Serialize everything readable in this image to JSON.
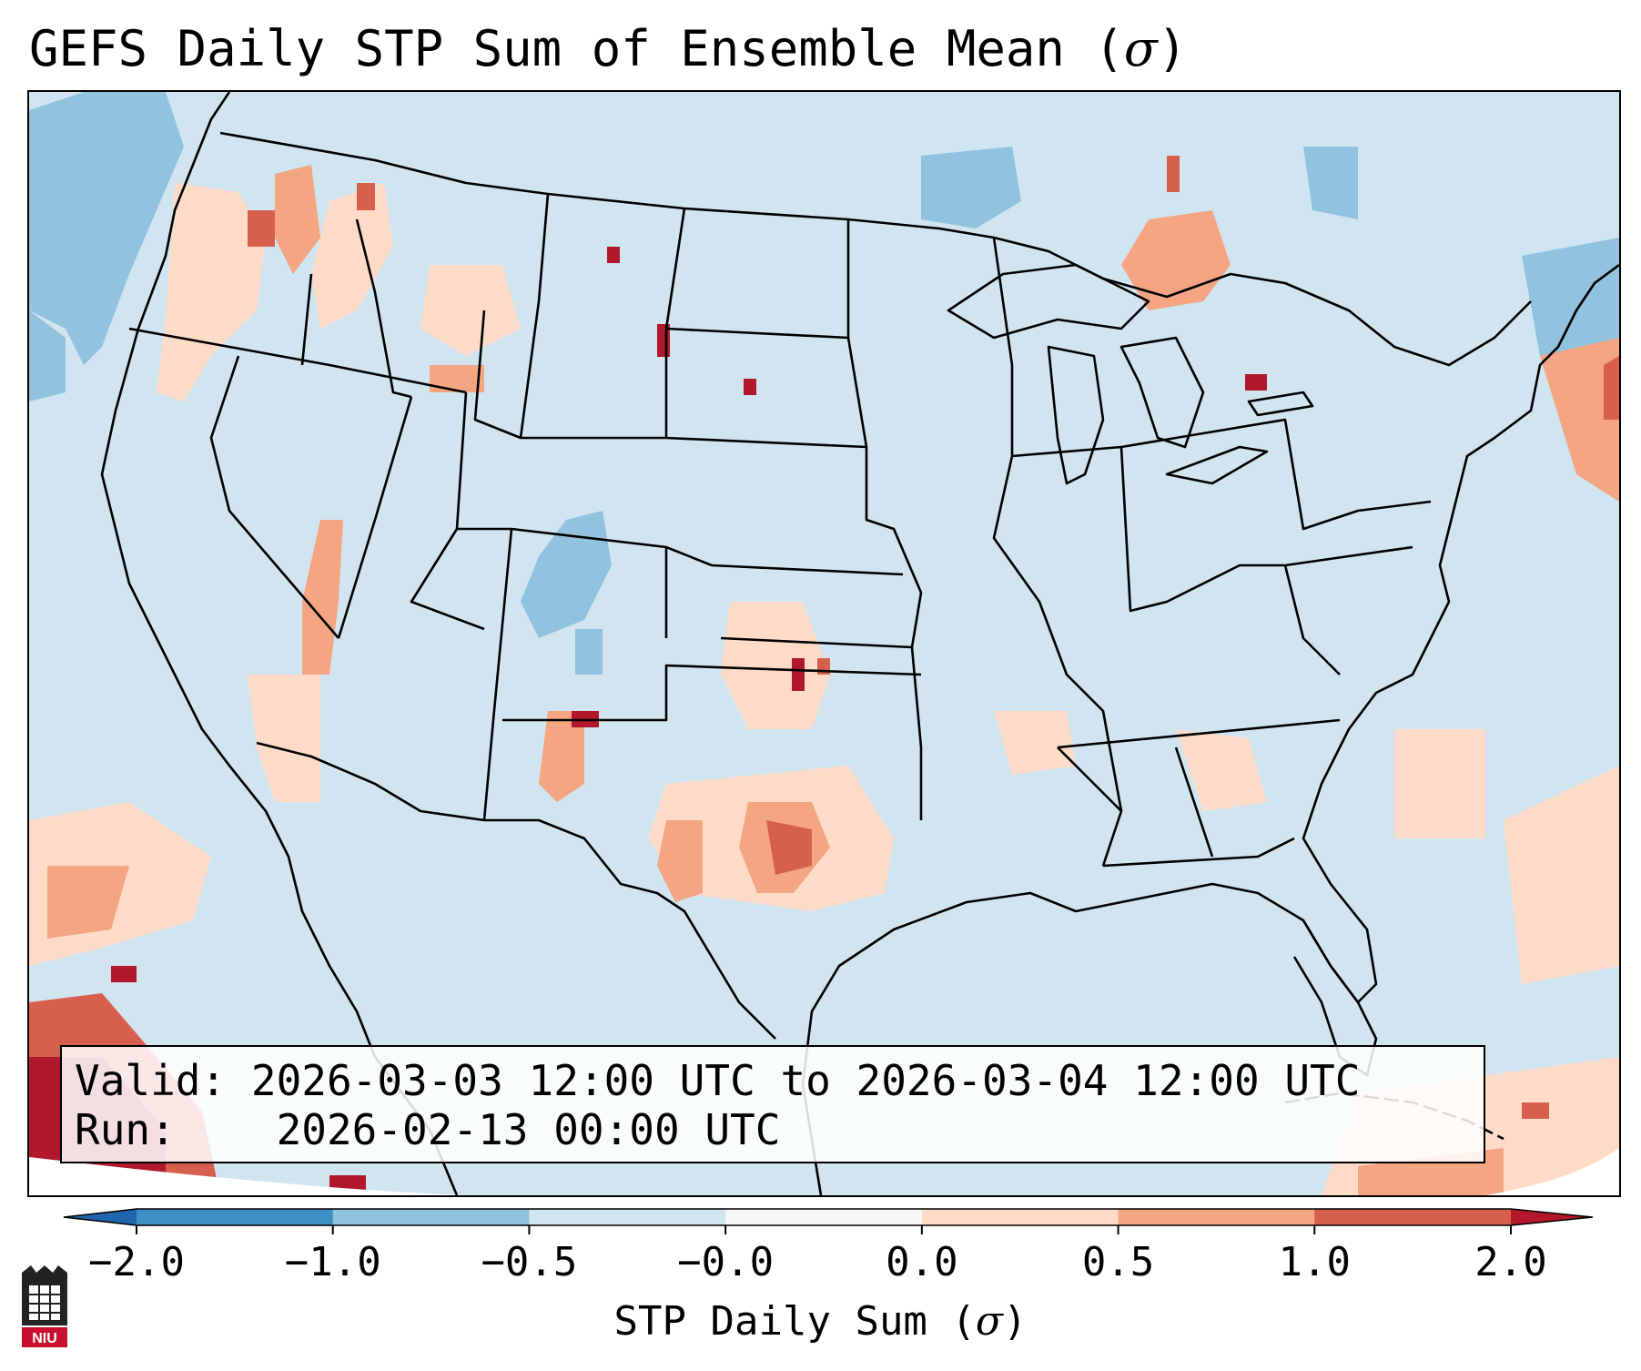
{
  "title": {
    "text": "GEFS Daily STP Sum of Ensemble Mean (",
    "symbol": "σ",
    "close": ")"
  },
  "info": {
    "valid_label": "Valid:",
    "valid_value": "2026-03-03 12:00 UTC to 2026-03-04 12:00 UTC",
    "run_label": "Run:",
    "run_value": "2026-02-13 00:00 UTC"
  },
  "colorbar": {
    "label_text": "STP Daily Sum (",
    "label_symbol": "σ",
    "label_close": ")",
    "ticks": [
      "−2.0",
      "−1.0",
      "−0.5",
      "−0.0",
      "0.0",
      "0.5",
      "1.0",
      "2.0"
    ],
    "colors": [
      "#3f8fc4",
      "#91c3de",
      "#d1e5f0",
      "#f7f7f7",
      "#fddbc7",
      "#f4a582",
      "#d6604d"
    ],
    "under_color": "#2166ac",
    "over_color": "#b2182b"
  },
  "logo": {
    "text": "NIU"
  },
  "chart_data": {
    "type": "heatmap",
    "title": "GEFS Daily STP Sum of Ensemble Mean (σ)",
    "units": "σ",
    "levels": [
      -2.0,
      -1.0,
      -0.5,
      -0.0,
      0.0,
      0.5,
      1.0,
      2.0
    ],
    "extend": "both",
    "background_level": -0.25,
    "features": [
      {
        "region": "Southern Plains (TX/OK)",
        "value_range": [
          0.5,
          2.0
        ]
      },
      {
        "region": "Desert Southwest / Lower Colorado River",
        "value_range": [
          0.5,
          2.0
        ]
      },
      {
        "region": "Eastern New Mexico",
        "value_range": [
          0.5,
          2.0
        ]
      },
      {
        "region": "Pacific Northwest",
        "value_range": [
          0.0,
          1.0
        ]
      },
      {
        "region": "Upper Great Lakes / Ontario",
        "value_range": [
          0.0,
          1.0
        ]
      },
      {
        "region": "Colorado Rockies",
        "value_range": [
          -1.0,
          -0.5
        ]
      },
      {
        "region": "Pacific Ocean offshore",
        "value_range": [
          -1.0,
          2.0
        ]
      },
      {
        "region": "Atlantic Ocean / Caribbean",
        "value_range": [
          0.0,
          2.0
        ]
      }
    ]
  }
}
